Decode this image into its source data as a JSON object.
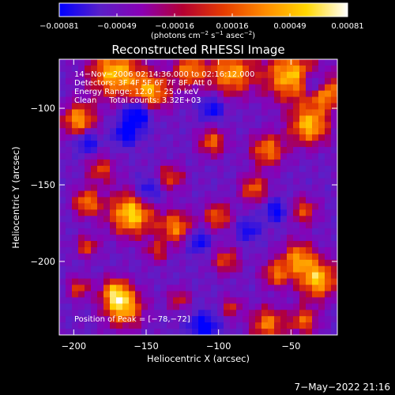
{
  "chart_data": {
    "type": "heatmap",
    "title": "Reconstructed RHESSI Image",
    "xlabel": "Heliocentric X (arcsec)",
    "ylabel": "Heliocentric Y (arcsec)",
    "xlim": [
      -210,
      -18
    ],
    "ylim": [
      -248,
      -68
    ],
    "x_ticks": [
      {
        "value": -200,
        "label": "−200"
      },
      {
        "value": -150,
        "label": "−150"
      },
      {
        "value": -100,
        "label": "−100"
      },
      {
        "value": -50,
        "label": "−50"
      }
    ],
    "y_ticks": [
      {
        "value": -100,
        "label": "−100"
      },
      {
        "value": -150,
        "label": "−150"
      },
      {
        "value": -200,
        "label": "−200"
      }
    ],
    "colorbar": {
      "range": [
        -0.00081,
        0.00081
      ],
      "tick_labels": [
        "−0.00081",
        "−0.00049",
        "−0.00016",
        "0.00016",
        "0.00049",
        "0.00081"
      ],
      "unit_parts": [
        "(photons cm",
        "−2",
        " s",
        "−1",
        " asec",
        "−2",
        ")"
      ],
      "colormap": [
        "#0000ff",
        "#5a20c8",
        "#8a00b4",
        "#b40032",
        "#e63c00",
        "#ff8c00",
        "#ffd700",
        "#ffffff"
      ]
    },
    "info_lines": [
      "14−Nov−2006 02:14:36.000 to 02:16:12.000",
      "Detectors: 3F 4F 5F 6F 7F 8F, Att 0",
      "Energy Range: 12.0 − 25.0 keV",
      "Clean     Total counts: 3.32E+03"
    ],
    "peak_label": "Position of Peak = [−78,−72]",
    "grid": false
  },
  "timestamp": "7−May−2022 21:16",
  "colors": {
    "background": "#000000",
    "text": "#ffffff"
  }
}
